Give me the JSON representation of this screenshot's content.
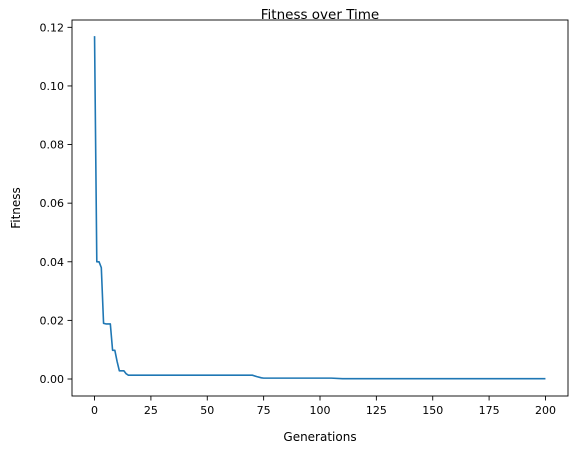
{
  "chart_data": {
    "type": "line",
    "title": "Fitness over Time",
    "xlabel": "Generations",
    "ylabel": "Fitness",
    "xlim": [
      -10,
      210
    ],
    "ylim": [
      -0.0058,
      0.1225
    ],
    "xticks": [
      0,
      25,
      50,
      75,
      100,
      125,
      150,
      175,
      200
    ],
    "yticks": [
      0.0,
      0.02,
      0.04,
      0.06,
      0.08,
      0.1,
      0.12
    ],
    "ytick_labels": [
      "0.00",
      "0.02",
      "0.04",
      "0.06",
      "0.08",
      "0.10",
      "0.12"
    ],
    "grid": false,
    "legend": "none",
    "series": [
      {
        "color": "#1f77b4",
        "x": [
          0,
          1,
          2,
          3,
          4,
          5,
          6,
          7,
          8,
          9,
          10,
          11,
          12,
          13,
          14,
          15,
          20,
          30,
          40,
          50,
          60,
          70,
          72,
          74,
          75,
          80,
          90,
          100,
          105,
          110,
          120,
          150,
          200
        ],
        "y": [
          0.117,
          0.04,
          0.04,
          0.038,
          0.019,
          0.0188,
          0.0188,
          0.0188,
          0.0098,
          0.0098,
          0.006,
          0.0028,
          0.0028,
          0.0028,
          0.0018,
          0.0013,
          0.0013,
          0.0013,
          0.0013,
          0.0013,
          0.0013,
          0.0013,
          0.0008,
          0.0004,
          0.0003,
          0.0003,
          0.0003,
          0.0003,
          0.0003,
          0.0001,
          0.0001,
          0.0001,
          0.0001
        ]
      }
    ]
  }
}
